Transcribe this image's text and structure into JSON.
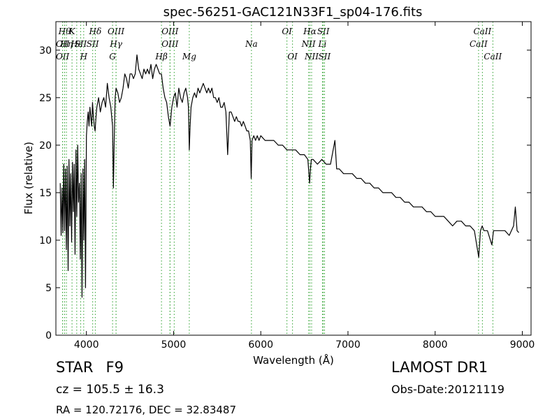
{
  "chart_data": {
    "type": "line",
    "title": "spec-56251-GAC121N33F1_sp04-176.fits",
    "xlabel": "Wavelength (Å)",
    "ylabel": "Flux (relative)",
    "xlim": [
      3650,
      9100
    ],
    "ylim": [
      0,
      33
    ],
    "xticks": [
      4000,
      5000,
      6000,
      7000,
      8000,
      9000
    ],
    "yticks": [
      0,
      5,
      10,
      15,
      20,
      25,
      30
    ],
    "grid": false,
    "line_color": "#000000",
    "marker_color": "#2ca02c",
    "series": [
      {
        "x": [
          3700,
          3710,
          3720,
          3730,
          3740,
          3750,
          3760,
          3770,
          3780,
          3790,
          3800,
          3810,
          3820,
          3830,
          3840,
          3850,
          3860,
          3870,
          3880,
          3890,
          3900,
          3910,
          3920,
          3930,
          3940,
          3950,
          3960,
          3970,
          3980,
          3990,
          4000,
          4010,
          4020,
          4030,
          4040,
          4050,
          4060,
          4070,
          4080,
          4090,
          4100,
          4110,
          4120,
          4140,
          4160,
          4180,
          4200,
          4220,
          4240,
          4260,
          4280,
          4300,
          4310,
          4320,
          4330,
          4340,
          4360,
          4380,
          4400,
          4420,
          4440,
          4460,
          4480,
          4500,
          4520,
          4540,
          4560,
          4580,
          4600,
          4620,
          4640,
          4660,
          4680,
          4700,
          4720,
          4740,
          4760,
          4780,
          4800,
          4820,
          4840,
          4860,
          4880,
          4900,
          4920,
          4940,
          4960,
          4980,
          5000,
          5020,
          5040,
          5060,
          5080,
          5100,
          5120,
          5140,
          5160,
          5170,
          5180,
          5190,
          5200,
          5220,
          5240,
          5260,
          5280,
          5300,
          5320,
          5340,
          5360,
          5380,
          5400,
          5420,
          5440,
          5460,
          5480,
          5500,
          5520,
          5540,
          5560,
          5580,
          5600,
          5620,
          5640,
          5660,
          5680,
          5700,
          5720,
          5740,
          5760,
          5780,
          5800,
          5820,
          5840,
          5860,
          5880,
          5890,
          5900,
          5920,
          5940,
          5960,
          5980,
          6000,
          6050,
          6100,
          6150,
          6200,
          6250,
          6300,
          6350,
          6400,
          6450,
          6500,
          6540,
          6560,
          6570,
          6580,
          6600,
          6650,
          6700,
          6750,
          6800,
          6850,
          6870,
          6880,
          6900,
          6950,
          7000,
          7050,
          7100,
          7150,
          7200,
          7250,
          7300,
          7350,
          7400,
          7450,
          7500,
          7550,
          7600,
          7650,
          7700,
          7750,
          7800,
          7850,
          7900,
          7950,
          8000,
          8050,
          8100,
          8150,
          8200,
          8250,
          8300,
          8350,
          8400,
          8450,
          8500,
          8520,
          8540,
          8560,
          8600,
          8650,
          8670,
          8700,
          8750,
          8800,
          8850,
          8900,
          8920,
          8940,
          8960
        ],
        "y": [
          16.0,
          10.5,
          15.5,
          10.8,
          18.0,
          11.0,
          17.5,
          9.0,
          17.8,
          6.8,
          18.5,
          11.5,
          17.0,
          9.8,
          18.2,
          13.0,
          18.0,
          8.5,
          19.5,
          12.5,
          20.0,
          14.0,
          16.0,
          8.0,
          17.0,
          4.0,
          17.5,
          10.0,
          18.5,
          5.0,
          21.0,
          22.5,
          23.5,
          22.0,
          24.0,
          23.0,
          22.0,
          24.5,
          23.0,
          22.0,
          21.5,
          23.0,
          24.0,
          25.0,
          23.5,
          24.5,
          25.0,
          24.0,
          26.5,
          25.0,
          24.0,
          22.0,
          15.5,
          21.0,
          25.0,
          26.0,
          25.5,
          24.5,
          25.0,
          26.0,
          27.5,
          27.0,
          26.0,
          27.5,
          27.5,
          27.0,
          27.5,
          29.5,
          28.0,
          27.5,
          27.0,
          28.0,
          27.5,
          28.0,
          27.5,
          28.5,
          27.0,
          28.0,
          28.5,
          28.0,
          27.5,
          27.5,
          26.0,
          25.0,
          24.5,
          23.0,
          22.0,
          24.0,
          25.0,
          25.5,
          24.0,
          26.0,
          25.0,
          24.5,
          25.5,
          26.0,
          25.0,
          24.0,
          19.5,
          22.0,
          24.0,
          25.0,
          25.5,
          25.0,
          26.0,
          25.5,
          26.0,
          26.5,
          26.0,
          25.5,
          26.0,
          25.5,
          26.0,
          25.0,
          25.0,
          24.5,
          25.0,
          24.0,
          24.0,
          24.5,
          23.5,
          19.0,
          23.5,
          23.5,
          23.0,
          22.5,
          23.0,
          22.5,
          22.5,
          22.0,
          22.5,
          22.0,
          21.5,
          21.5,
          20.5,
          16.5,
          20.5,
          21.0,
          20.5,
          21.0,
          20.5,
          21.0,
          20.5,
          20.5,
          20.5,
          20.0,
          20.0,
          19.5,
          19.5,
          19.5,
          19.0,
          19.0,
          18.5,
          16.0,
          17.5,
          18.5,
          18.5,
          18.0,
          18.5,
          18.0,
          18.0,
          20.5,
          17.5,
          17.5,
          17.5,
          17.0,
          17.0,
          17.0,
          16.5,
          16.5,
          16.0,
          16.0,
          15.5,
          15.5,
          15.0,
          15.0,
          15.0,
          14.5,
          14.5,
          14.0,
          14.0,
          13.5,
          13.5,
          13.5,
          13.0,
          13.0,
          12.5,
          12.5,
          12.5,
          12.0,
          11.5,
          12.0,
          12.0,
          11.5,
          11.5,
          11.0,
          8.2,
          11.0,
          11.5,
          11.0,
          11.0,
          9.5,
          11.0,
          11.0,
          11.0,
          11.0,
          10.5,
          11.5,
          13.5,
          11.0,
          10.8
        ]
      }
    ],
    "line_markers": [
      {
        "x": 3727,
        "label": "OII",
        "row": 2
      },
      {
        "x": 3727,
        "label": "OII",
        "row": 3
      },
      {
        "x": 3750,
        "label": "Hθ",
        "row": 0
      },
      {
        "x": 3771,
        "label": "Hη",
        "row": 2
      },
      {
        "x": 3835,
        "label": "K",
        "row": 0
      },
      {
        "x": 3889,
        "label": "Hε",
        "row": 1
      },
      {
        "x": 3934,
        "label": "SII",
        "row": 1
      },
      {
        "x": 3969,
        "label": "H",
        "row": 3
      },
      {
        "x": 4102,
        "label": "Hδ",
        "row": 0
      },
      {
        "x": 4072,
        "label": "SII",
        "row": 1
      },
      {
        "x": 4340,
        "label": "OIII",
        "row": 0
      },
      {
        "x": 4340,
        "label": "Hγ",
        "row": 1
      },
      {
        "x": 4300,
        "label": "G",
        "row": 3
      },
      {
        "x": 4861,
        "label": "Hβ",
        "row": 3
      },
      {
        "x": 4959,
        "label": "OIII",
        "row": 0
      },
      {
        "x": 4959,
        "label": "OIII",
        "row": 2
      },
      {
        "x": 5007,
        "label": "",
        "row": -1
      },
      {
        "x": 5180,
        "label": "Mg",
        "row": 3
      },
      {
        "x": 5893,
        "label": "Na",
        "row": 2
      },
      {
        "x": 6300,
        "label": "OI",
        "row": 0
      },
      {
        "x": 6364,
        "label": "OI",
        "row": 3
      },
      {
        "x": 6548,
        "label": "NII",
        "row": 2
      },
      {
        "x": 6583,
        "label": "NII",
        "row": 3
      },
      {
        "x": 6563,
        "label": "Hα",
        "row": 0
      },
      {
        "x": 6707,
        "label": "Li",
        "row": 2
      },
      {
        "x": 6717,
        "label": "SII",
        "row": 0
      },
      {
        "x": 6731,
        "label": "SII",
        "row": 3
      },
      {
        "x": 8498,
        "label": "CaII",
        "row": 2
      },
      {
        "x": 8542,
        "label": "CaII",
        "row": 0
      },
      {
        "x": 8662,
        "label": "CaII",
        "row": 3
      }
    ]
  },
  "info": {
    "class": "STAR",
    "subclass": "F9",
    "cz": "cz = 105.5  ± 16.3",
    "radec": "RA = 120.72176, DEC = 32.83487",
    "survey": "LAMOST DR1",
    "obs_date": "Obs-Date:20121119"
  }
}
